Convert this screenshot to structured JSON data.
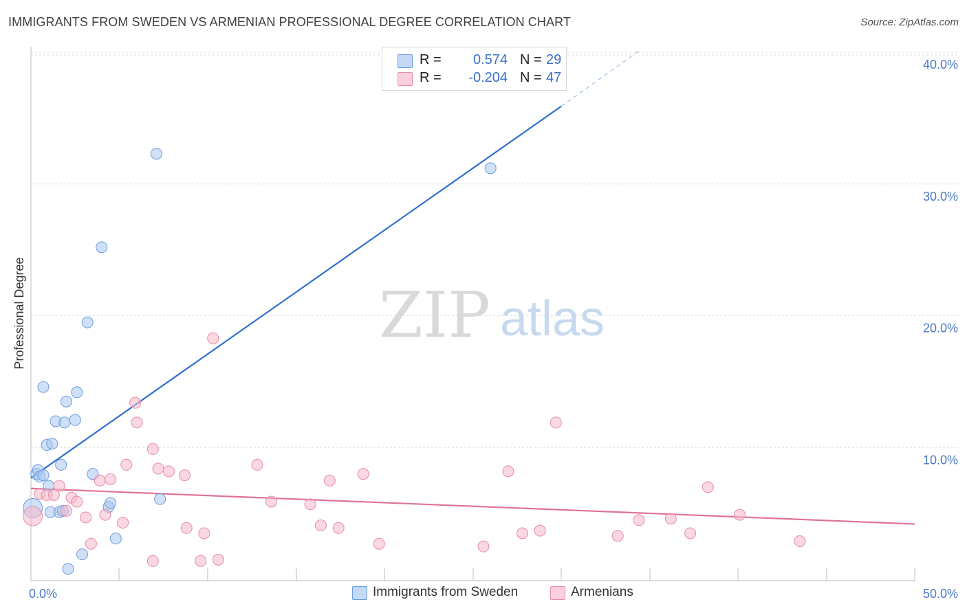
{
  "title": "IMMIGRANTS FROM SWEDEN VS ARMENIAN PROFESSIONAL DEGREE CORRELATION CHART",
  "source": "Source: ZipAtlas.com",
  "watermark": {
    "zip": "ZIP",
    "atlas": "atlas"
  },
  "legend": {
    "rows": [
      {
        "r_label": "R =",
        "r_value": "0.574",
        "n_label": "N =",
        "n_value": "29",
        "color": "#a9c8f0"
      },
      {
        "r_label": "R =",
        "r_value": "-0.204",
        "n_label": "N =",
        "n_value": "47",
        "color": "#f6b8cb"
      }
    ]
  },
  "chart_data": {
    "type": "scatter",
    "title": "IMMIGRANTS FROM SWEDEN VS ARMENIAN PROFESSIONAL DEGREE CORRELATION CHART",
    "xlabel": "",
    "ylabel": "Professional Degree",
    "xlim": [
      0,
      50
    ],
    "ylim": [
      0,
      40
    ],
    "x_tick_labels": [
      "0.0%",
      "50.0%"
    ],
    "y_ticks": [
      10,
      20,
      30,
      40
    ],
    "y_tick_labels": [
      "10.0%",
      "20.0%",
      "30.0%",
      "40.0%"
    ],
    "grid": true,
    "legend_position": "bottom-center",
    "series": [
      {
        "name": "Immigrants from Sweden",
        "color": "#a9c8f0",
        "stroke": "#6a9be0",
        "line_color": "#2f70cc",
        "trend": {
          "x0": 0,
          "y0": 7.8,
          "x1": 30,
          "y1": 36.0,
          "dash_to_x": 34.5,
          "dash_to_y": 40.3
        },
        "points": [
          [
            0.1,
            5.5
          ],
          [
            0.3,
            8.1
          ],
          [
            0.4,
            8.4
          ],
          [
            0.5,
            7.9
          ],
          [
            0.7,
            8.0
          ],
          [
            0.7,
            14.7
          ],
          [
            0.9,
            10.3
          ],
          [
            1.0,
            7.2
          ],
          [
            1.1,
            5.2
          ],
          [
            1.2,
            10.4
          ],
          [
            1.4,
            12.1
          ],
          [
            1.6,
            5.2
          ],
          [
            1.7,
            8.8
          ],
          [
            1.8,
            5.3
          ],
          [
            1.9,
            12.0
          ],
          [
            2.0,
            13.6
          ],
          [
            2.1,
            0.9
          ],
          [
            2.5,
            12.2
          ],
          [
            2.6,
            14.3
          ],
          [
            2.9,
            2.0
          ],
          [
            3.2,
            19.6
          ],
          [
            3.5,
            8.1
          ],
          [
            4.0,
            25.3
          ],
          [
            4.4,
            5.6
          ],
          [
            4.5,
            5.9
          ],
          [
            4.8,
            3.2
          ],
          [
            7.1,
            32.4
          ],
          [
            7.3,
            6.2
          ],
          [
            26.0,
            31.3
          ]
        ]
      },
      {
        "name": "Armenians",
        "color": "#f6b8cb",
        "stroke": "#e88aa8",
        "line_color": "#e0709a",
        "trend": {
          "x0": 0,
          "y0": 7.0,
          "x1": 50,
          "y1": 4.3
        },
        "points": [
          [
            0.1,
            4.9
          ],
          [
            0.5,
            6.6
          ],
          [
            0.9,
            6.5
          ],
          [
            1.3,
            6.5
          ],
          [
            1.6,
            7.2
          ],
          [
            2.0,
            5.3
          ],
          [
            2.3,
            6.3
          ],
          [
            2.6,
            6.0
          ],
          [
            3.1,
            4.8
          ],
          [
            3.4,
            2.8
          ],
          [
            3.9,
            7.6
          ],
          [
            4.2,
            5.0
          ],
          [
            4.5,
            7.7
          ],
          [
            5.2,
            4.4
          ],
          [
            5.4,
            8.8
          ],
          [
            5.9,
            13.5
          ],
          [
            6.0,
            12.0
          ],
          [
            6.9,
            1.5
          ],
          [
            6.9,
            10.0
          ],
          [
            7.2,
            8.5
          ],
          [
            7.8,
            8.3
          ],
          [
            8.7,
            8.0
          ],
          [
            8.8,
            4.0
          ],
          [
            9.6,
            1.5
          ],
          [
            9.8,
            3.6
          ],
          [
            10.3,
            18.4
          ],
          [
            10.6,
            1.6
          ],
          [
            12.8,
            8.8
          ],
          [
            13.6,
            6.0
          ],
          [
            15.8,
            5.8
          ],
          [
            16.4,
            4.2
          ],
          [
            16.9,
            7.6
          ],
          [
            17.4,
            4.0
          ],
          [
            18.8,
            8.1
          ],
          [
            19.7,
            2.8
          ],
          [
            25.6,
            2.6
          ],
          [
            27.0,
            8.3
          ],
          [
            27.8,
            3.6
          ],
          [
            28.8,
            3.8
          ],
          [
            29.7,
            12.0
          ],
          [
            33.2,
            3.4
          ],
          [
            34.4,
            4.6
          ],
          [
            36.2,
            4.7
          ],
          [
            37.3,
            3.6
          ],
          [
            38.3,
            7.1
          ],
          [
            40.1,
            5.0
          ],
          [
            43.5,
            3.0
          ]
        ]
      }
    ]
  }
}
